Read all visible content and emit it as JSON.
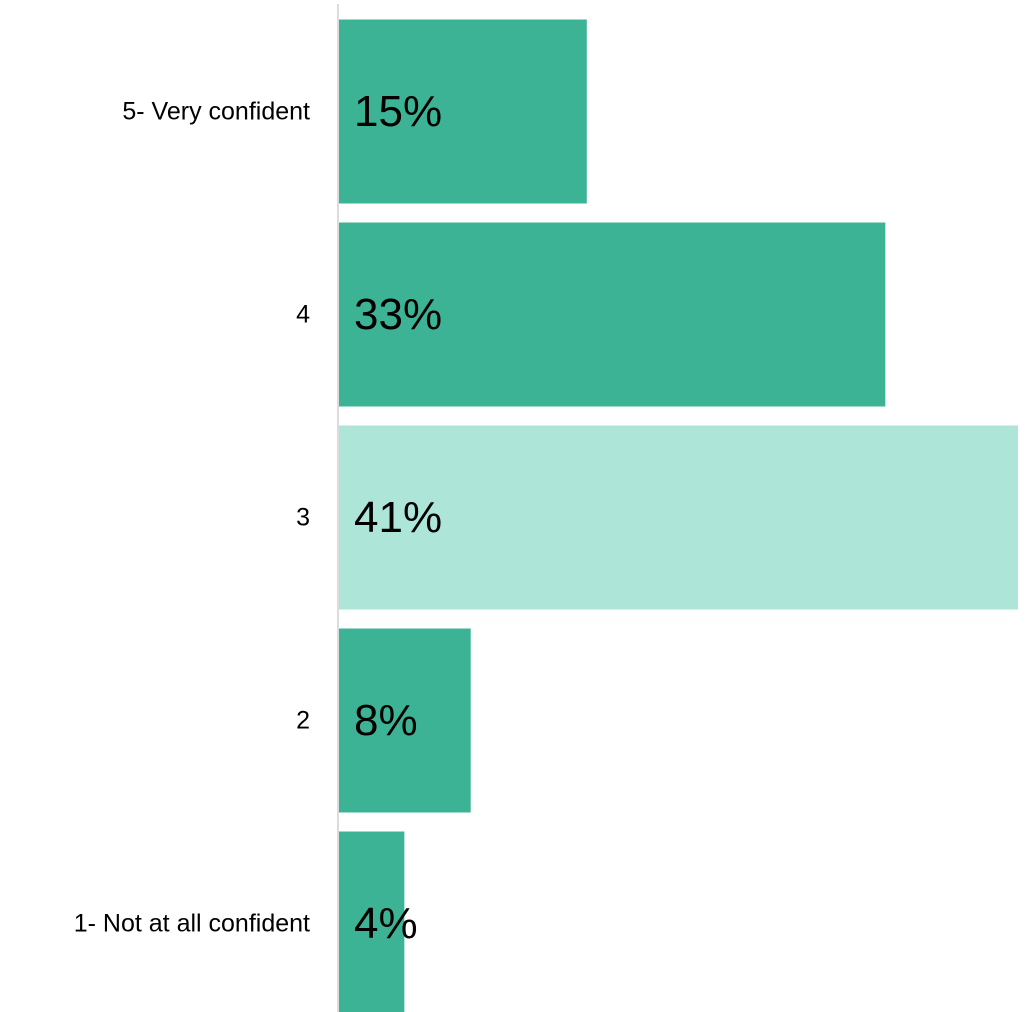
{
  "chart_data": {
    "type": "bar",
    "orientation": "horizontal",
    "categories": [
      "5- Very confident",
      "4",
      "3",
      "2",
      "1- Not at all confident"
    ],
    "values": [
      15,
      33,
      41,
      8,
      4
    ],
    "value_labels": [
      "15%",
      "33%",
      "41%",
      "8%",
      "4%"
    ],
    "unit": "%",
    "xlim": [
      0,
      41
    ],
    "grid": false,
    "legend": "none",
    "highlight_index": 2,
    "colors": {
      "bar": "#3cb394",
      "highlight": "#ade5d8",
      "axis": "#d0d0d0",
      "text": "#000000"
    }
  }
}
